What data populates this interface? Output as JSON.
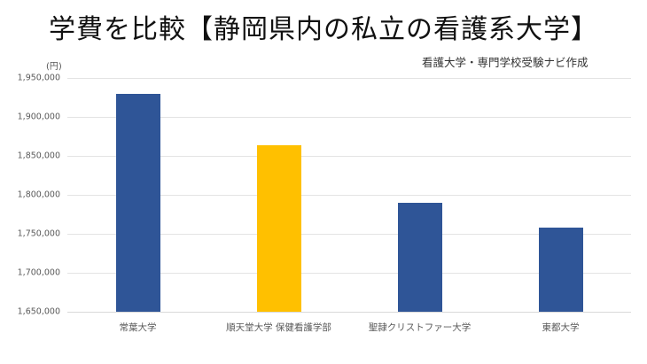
{
  "header": {
    "title": "学費を比較【静岡県内の私立の看護系大学】",
    "credit": "看護大学・専門学校受験ナビ作成"
  },
  "axis": {
    "unit_label": "(円)",
    "y_ticks": [
      "1,950,000",
      "1,900,000",
      "1,850,000",
      "1,800,000",
      "1,750,000",
      "1,700,000",
      "1,650,000"
    ]
  },
  "colors": {
    "default_bar": "#2f5597",
    "highlight_bar": "#ffc000"
  },
  "chart_data": {
    "type": "bar",
    "title": "学費を比較【静岡県内の私立の看護系大学】",
    "subtitle": "看護大学・専門学校受験ナビ作成",
    "xlabel": "",
    "ylabel": "(円)",
    "categories": [
      "常葉大学",
      "順天堂大学 保健看護学部",
      "聖隷クリストファー大学",
      "東都大学"
    ],
    "values": [
      1930000,
      1864000,
      1790000,
      1758000
    ],
    "bar_colors": [
      "#2f5597",
      "#ffc000",
      "#2f5597",
      "#2f5597"
    ],
    "ylim": [
      1650000,
      1950000
    ],
    "y_tick_step": 50000,
    "grid": true,
    "legend": "none"
  }
}
